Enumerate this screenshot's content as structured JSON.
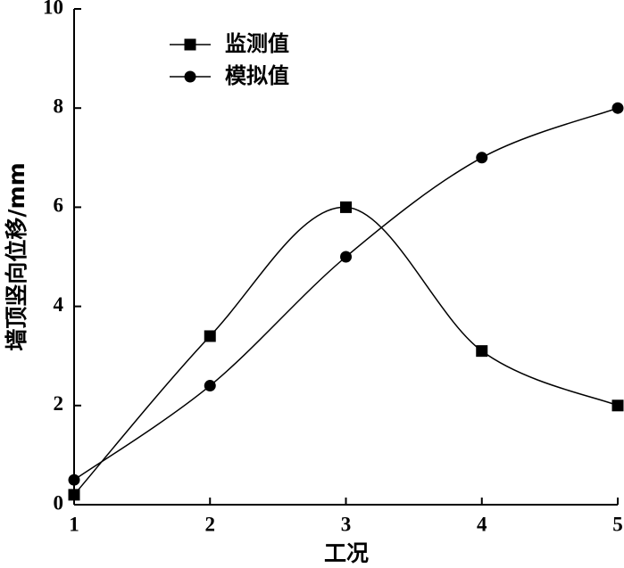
{
  "chart_data": {
    "type": "line",
    "x_label": "工况",
    "y_label": "墙顶竖向位移/mm",
    "x": [
      1,
      2,
      3,
      4,
      5
    ],
    "series": [
      {
        "name": "监测值",
        "color": "#000000",
        "marker": "square",
        "values": [
          0.2,
          3.4,
          6.0,
          3.1,
          2.0
        ]
      },
      {
        "name": "模拟值",
        "color": "#000000",
        "marker": "circle",
        "values": [
          0.5,
          2.4,
          5.0,
          7.0,
          8.0
        ]
      }
    ],
    "xlim": [
      1,
      5
    ],
    "xticks": [
      1,
      2,
      3,
      4,
      5
    ],
    "ylim": [
      0,
      10
    ],
    "yticks": [
      0,
      2,
      4,
      6,
      8,
      10
    ],
    "smooth": true,
    "legend": "upper-left"
  }
}
